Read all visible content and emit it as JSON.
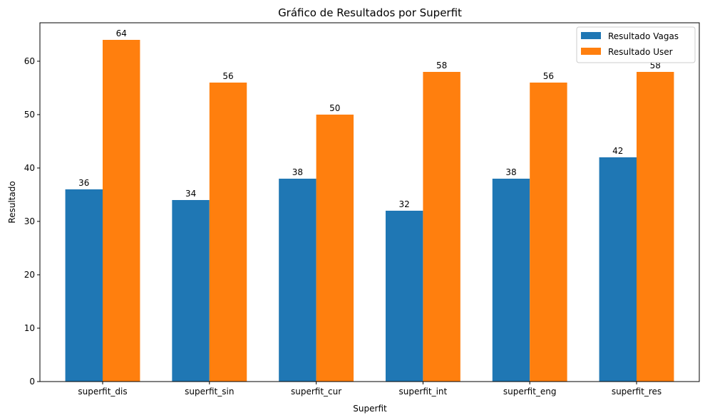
{
  "chart_data": {
    "type": "bar",
    "title": "Gráfico de Resultados por Superfit",
    "xlabel": "Superfit",
    "ylabel": "Resultado",
    "categories": [
      "superfit_dis",
      "superfit_sin",
      "superfit_cur",
      "superfit_int",
      "superfit_eng",
      "superfit_res"
    ],
    "series": [
      {
        "name": "Resultado Vagas",
        "color": "#1f77b4",
        "values": [
          36,
          34,
          38,
          32,
          38,
          42
        ]
      },
      {
        "name": "Resultado User",
        "color": "#ff7f0e",
        "values": [
          64,
          56,
          50,
          58,
          56,
          58
        ]
      }
    ],
    "ylim": [
      0,
      67.2
    ],
    "yticks": [
      0,
      10,
      20,
      30,
      40,
      50,
      60
    ],
    "grid": false,
    "legend_position": "top-right"
  }
}
